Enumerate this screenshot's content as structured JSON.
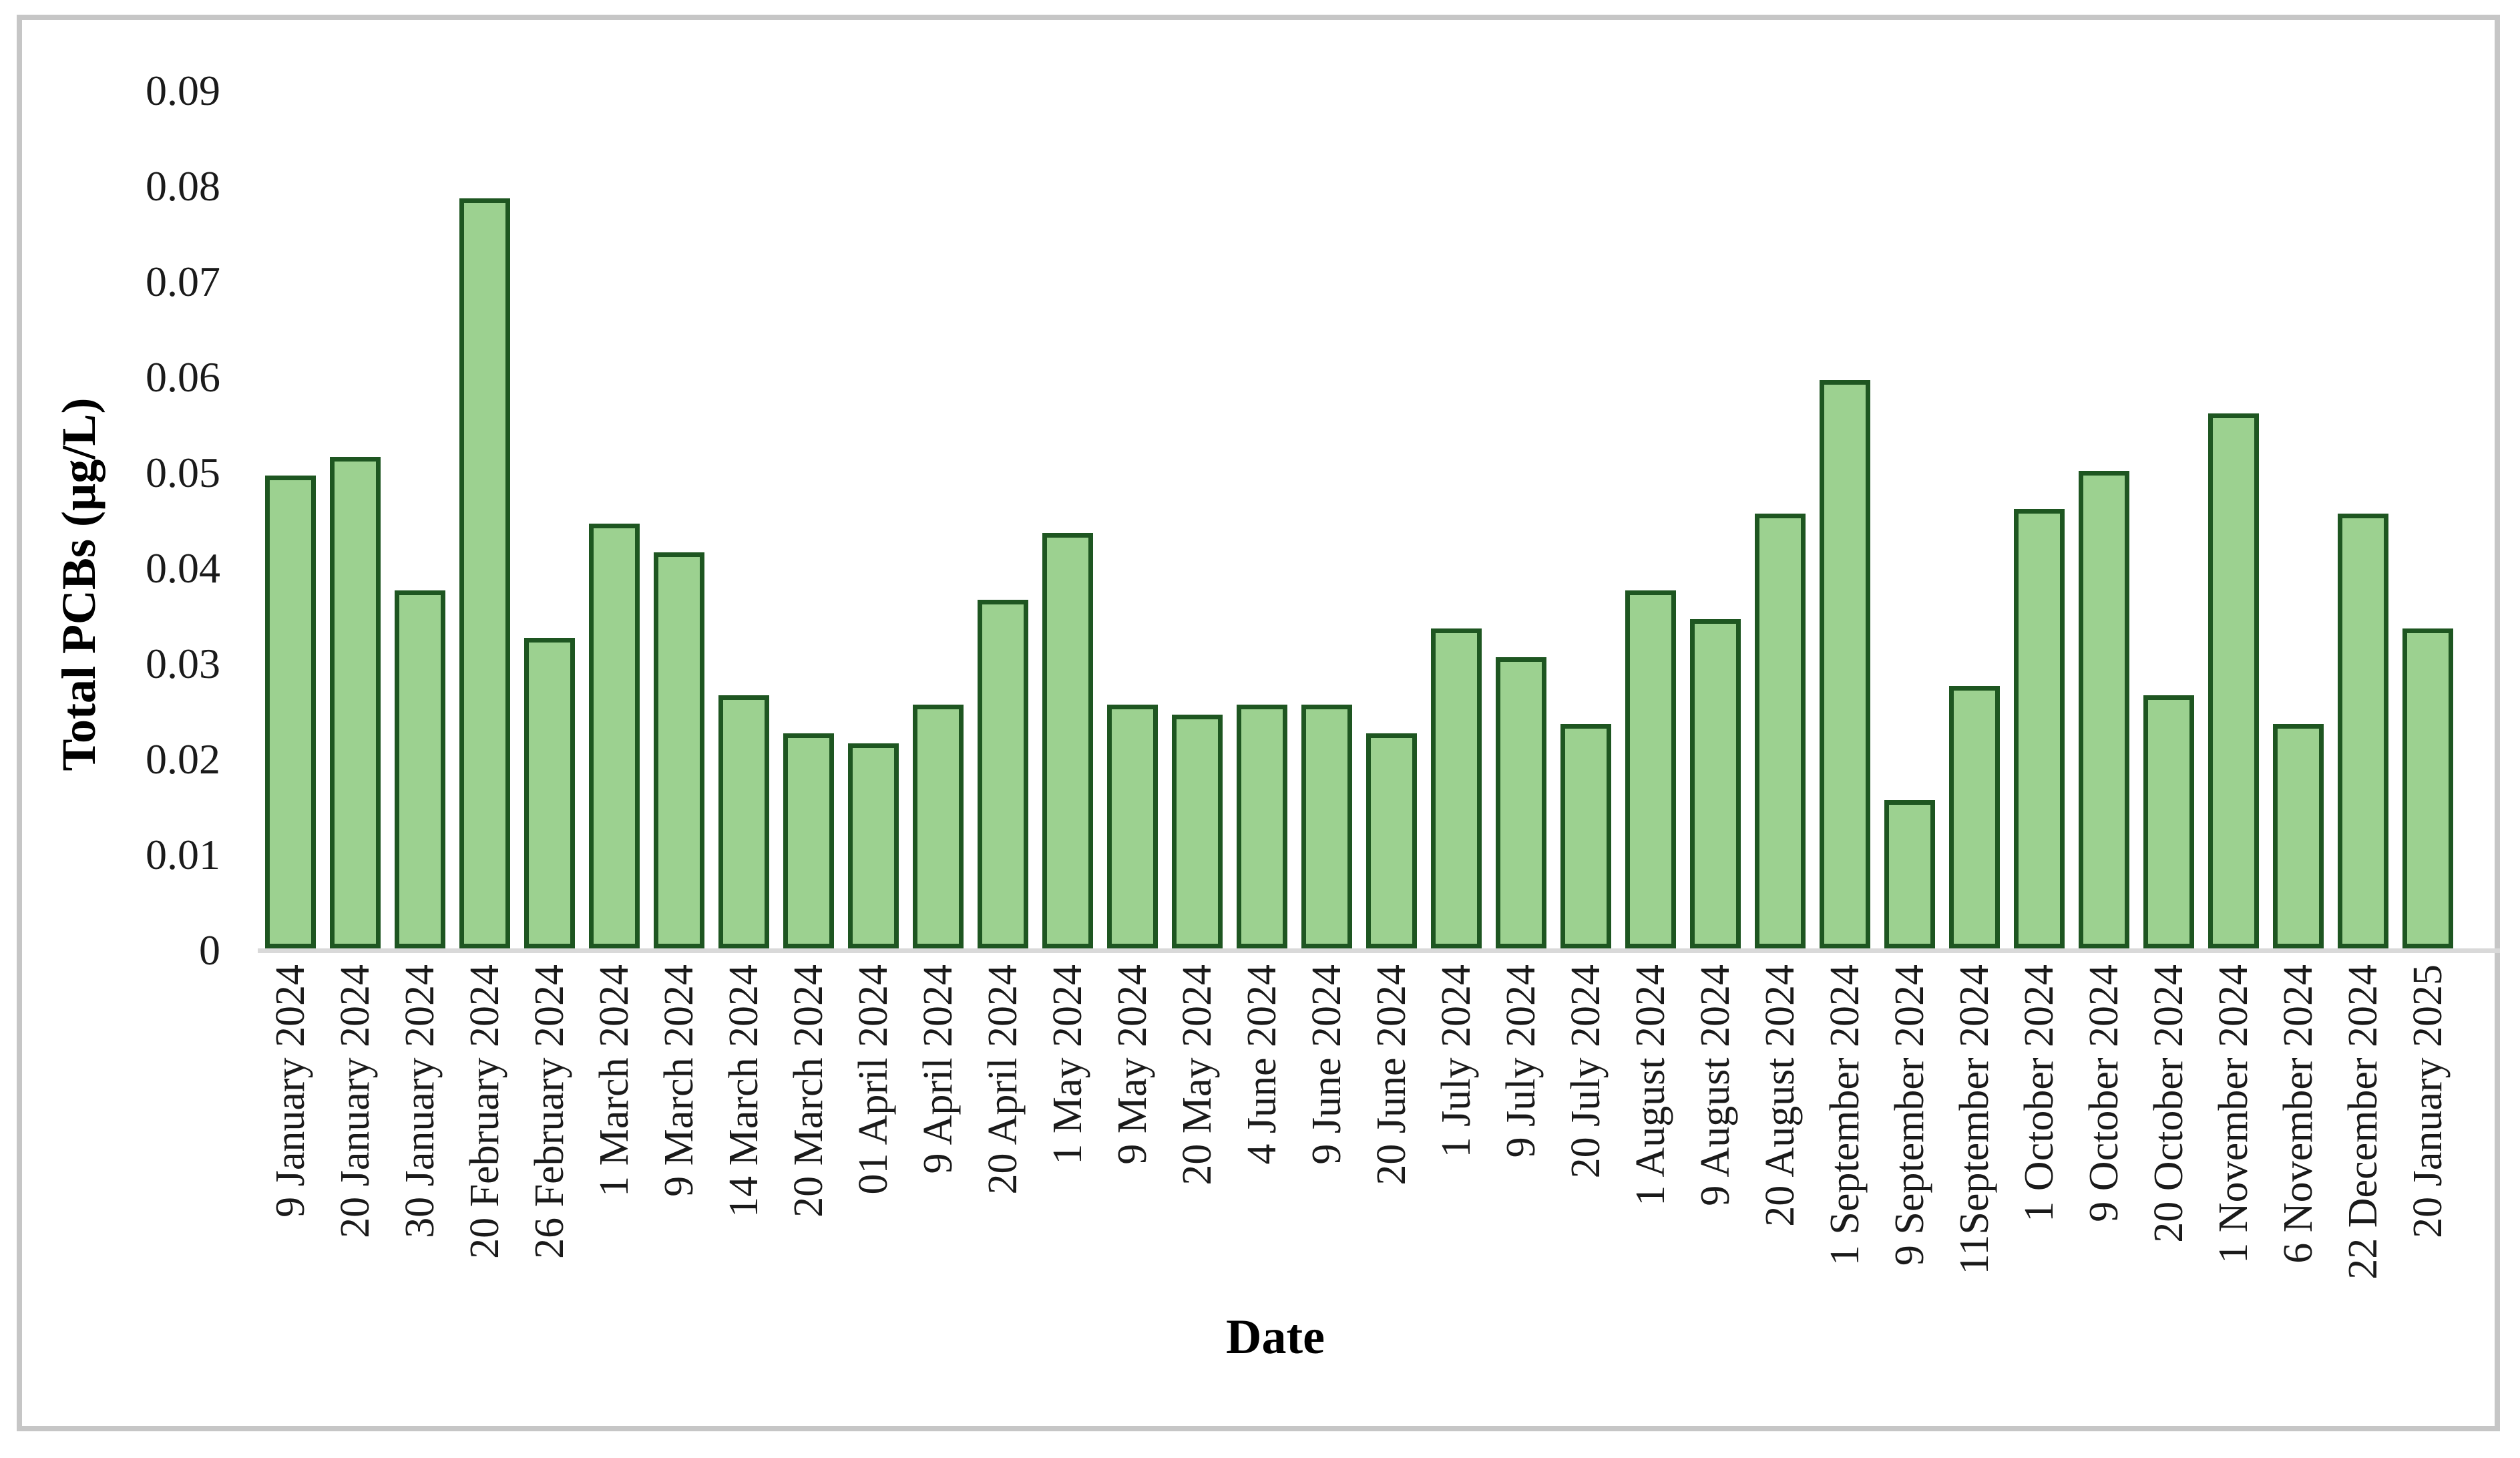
{
  "figure": {
    "background": "#ffffff",
    "border_color": "#c6c6c6"
  },
  "chart_data": {
    "type": "bar",
    "title": "",
    "xlabel": "Date",
    "ylabel": "Total PCBs (µg/L)",
    "categories": [
      "9 January 2024",
      "20 January 2024",
      "30 January 2024",
      "20 February 2024",
      "26 February 2024",
      "1 March 2024",
      "9 March 2024",
      "14 March 2024",
      "20 March 2024",
      "01 April 2024",
      "9 April 2024",
      "20 April 2024",
      "1 May 2024",
      "9 May 2024",
      "20 May 2024",
      "4 June 2024",
      "9 June 2024",
      "20 June 2024",
      "1 July 2024",
      "9 July 2024",
      "20 July 2024",
      "1 August 2024",
      "9 August 2024",
      "20 August 2024",
      "1 September 2024",
      "9 September 2024",
      "11September 2024",
      "1 October 2024",
      "9 October 2024",
      "20 October 2024",
      "1 November 2024",
      "6 November 2024",
      "22 December 2024",
      "20 January 2025"
    ],
    "values": [
      0.0495,
      0.0515,
      0.0375,
      0.0785,
      0.0325,
      0.0445,
      0.0415,
      0.0265,
      0.0225,
      0.0215,
      0.0255,
      0.0365,
      0.0435,
      0.0255,
      0.0245,
      0.0255,
      0.0255,
      0.0225,
      0.0335,
      0.0305,
      0.0235,
      0.0375,
      0.0345,
      0.0455,
      0.0595,
      0.0155,
      0.0275,
      0.046,
      0.05,
      0.0265,
      0.056,
      0.0235,
      0.0455,
      0.0335
    ],
    "ylim": [
      0,
      0.09
    ],
    "ytick_step": 0.01,
    "ytick_labels": [
      "0",
      "0.01",
      "0.02",
      "0.03",
      "0.04",
      "0.05",
      "0.06",
      "0.07",
      "0.08",
      "0.09"
    ],
    "grid": false,
    "legend": "none",
    "bar_fill_color": "#9cd190",
    "bar_border_color": "#1e5621",
    "axis_line_color": "#d9d9d9",
    "tick_text_color": "#1a1a1a",
    "title_text_color": "#000000"
  }
}
